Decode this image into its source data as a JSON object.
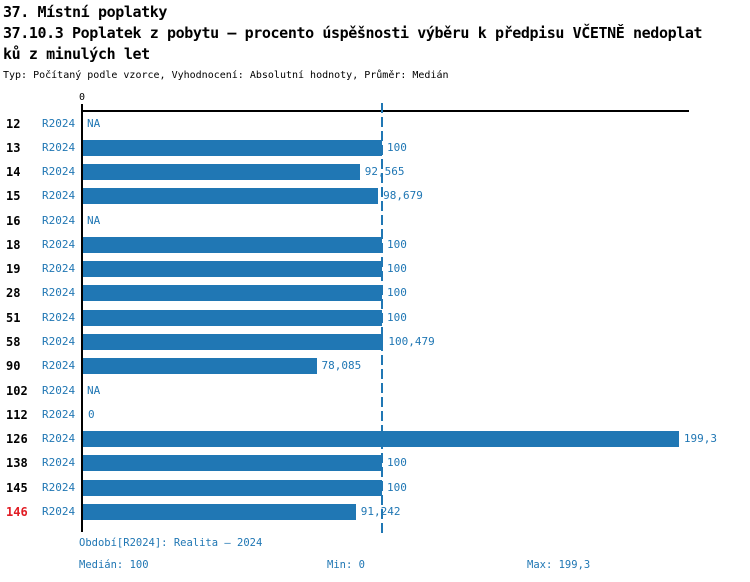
{
  "header": {
    "title_line1": "37. Místní poplatky",
    "title_line2": "37.10.3 Poplatek z pobytu – procento úspěšnosti výběru k předpisu VČETNĚ nedoplat",
    "title_line3": "ků z minulých let",
    "meta_line": "Typ: Počítaný podle vzorce, Vyhodnocení: Absolutní hodnoty, Průměr: Medián"
  },
  "chart_data": {
    "type": "bar",
    "orientation": "horizontal",
    "title": "37.10.3 Poplatek z pobytu – procento úspěšnosti výběru k předpisu VČETNĚ nedoplatků z minulých let",
    "series_label": "R2024",
    "zero_tick_label": "0",
    "xlim": [
      0,
      203
    ],
    "grid": false,
    "median_line_value": 100,
    "median": 100,
    "min": 0,
    "max": 199.3,
    "bar_color": "#2077b4",
    "highlight_color": "#e11b23",
    "categories": [
      "12",
      "13",
      "14",
      "15",
      "16",
      "18",
      "19",
      "28",
      "51",
      "58",
      "90",
      "102",
      "112",
      "126",
      "138",
      "145",
      "146"
    ],
    "values": [
      null,
      100,
      92.565,
      98.679,
      null,
      100,
      100,
      100,
      100,
      100.479,
      78.085,
      null,
      0,
      199.3,
      100,
      100,
      91.242
    ],
    "rows": [
      {
        "id": "12",
        "value": null,
        "label": "NA",
        "red": false
      },
      {
        "id": "13",
        "value": 100,
        "label": "100",
        "red": false
      },
      {
        "id": "14",
        "value": 92.565,
        "label": "92,565",
        "red": false
      },
      {
        "id": "15",
        "value": 98.679,
        "label": "98,679",
        "red": false
      },
      {
        "id": "16",
        "value": null,
        "label": "NA",
        "red": false
      },
      {
        "id": "18",
        "value": 100,
        "label": "100",
        "red": false
      },
      {
        "id": "19",
        "value": 100,
        "label": "100",
        "red": false
      },
      {
        "id": "28",
        "value": 100,
        "label": "100",
        "red": false
      },
      {
        "id": "51",
        "value": 100,
        "label": "100",
        "red": false
      },
      {
        "id": "58",
        "value": 100.479,
        "label": "100,479",
        "red": false
      },
      {
        "id": "90",
        "value": 78.085,
        "label": "78,085",
        "red": false
      },
      {
        "id": "102",
        "value": null,
        "label": "NA",
        "red": false
      },
      {
        "id": "112",
        "value": 0,
        "label": "0",
        "red": false
      },
      {
        "id": "126",
        "value": 199.3,
        "label": "199,3",
        "red": false
      },
      {
        "id": "138",
        "value": 100,
        "label": "100",
        "red": false
      },
      {
        "id": "145",
        "value": 100,
        "label": "100",
        "red": false
      },
      {
        "id": "146",
        "value": 91.242,
        "label": "91,242",
        "red": true
      }
    ]
  },
  "footer": {
    "period_line": "Období[R2024]: Realita – 2024",
    "median_label": "Medián: 100",
    "min_label": "Min: 0",
    "max_label": "Max: 199,3"
  },
  "colors": {
    "bar_blue": "#2077b4",
    "accent_text_blue": "#2077b4",
    "highlight_red": "#e11b23",
    "axis_black": "#000000"
  }
}
